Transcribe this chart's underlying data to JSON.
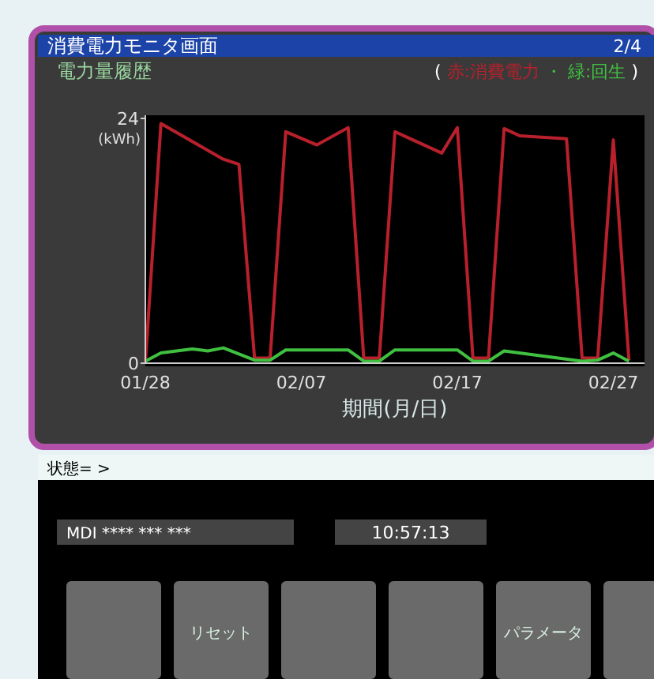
{
  "chart_data": {
    "type": "line",
    "title": "消費電力モニタ画面",
    "subtitle": "電力量履歴",
    "ylabel": "(kWh)",
    "xlabel": "期間(月/日)",
    "xlim": [
      "--01-28",
      "--02-29"
    ],
    "xticks": [
      {
        "value": "--01-28",
        "label": "01/28"
      },
      {
        "value": "--02-07",
        "label": "02/07"
      },
      {
        "value": "--02-17",
        "label": "02/17"
      },
      {
        "value": "--02-27",
        "label": "02/27"
      }
    ],
    "ylim": [
      0,
      24
    ],
    "yticks": [
      0,
      24
    ],
    "grid": false,
    "legend": "top right",
    "marker": "none",
    "line_style": "solid",
    "series": [
      {
        "name": "赤:消費電力",
        "color": "#b8202c",
        "x": [
          "--01-28",
          "--01-29",
          "--02-02",
          "--02-03",
          "--02-04",
          "--02-05",
          "--02-06",
          "--02-08",
          "--02-10",
          "--02-11",
          "--02-12",
          "--02-13",
          "--02-16",
          "--02-17",
          "--02-18",
          "--02-19",
          "--02-20",
          "--02-21",
          "--02-24",
          "--02-25",
          "--02-26",
          "--02-27",
          "--02-28"
        ],
        "values": [
          0,
          23.5,
          20,
          19.5,
          0.5,
          0.5,
          22.7,
          21.4,
          23.1,
          0.5,
          0.5,
          22.7,
          20.6,
          23.1,
          0.5,
          0.5,
          23,
          22.3,
          22,
          0.5,
          0.5,
          21.9,
          0.3
        ]
      },
      {
        "name": "緑:回生",
        "color": "#40c040",
        "x": [
          "--01-28",
          "--01-29",
          "--01-31",
          "--02-01",
          "--02-02",
          "--02-04",
          "--02-05",
          "--02-06",
          "--02-10",
          "--02-11",
          "--02-12",
          "--02-13",
          "--02-17",
          "--02-18",
          "--02-19",
          "--02-20",
          "--02-25",
          "--02-26",
          "--02-27",
          "--02-28"
        ],
        "values": [
          0.2,
          1.0,
          1.4,
          1.2,
          1.5,
          0.3,
          0.3,
          1.3,
          1.3,
          0.2,
          0.2,
          1.3,
          1.3,
          0.2,
          0.2,
          1.2,
          0.2,
          0.3,
          1.0,
          0.2
        ]
      }
    ],
    "annotations": [
      "2/4",
      "(",
      "・",
      ")",
      "状態= >",
      "MDI **** *** ***",
      "10:57:13",
      "リセット",
      "パラメータ"
    ]
  }
}
